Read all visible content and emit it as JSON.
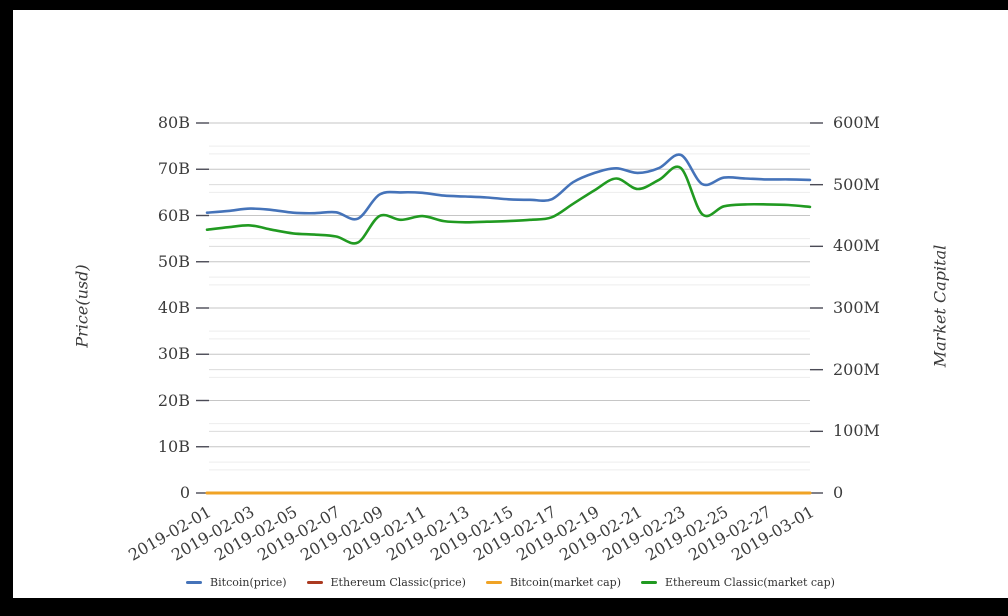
{
  "frame": {
    "background": "#000000",
    "page_background": "#ffffff"
  },
  "chart_data": {
    "type": "line",
    "title": "",
    "x": [
      "2019-02-01",
      "2019-02-02",
      "2019-02-03",
      "2019-02-04",
      "2019-02-05",
      "2019-02-06",
      "2019-02-07",
      "2019-02-08",
      "2019-02-09",
      "2019-02-10",
      "2019-02-11",
      "2019-02-12",
      "2019-02-13",
      "2019-02-14",
      "2019-02-15",
      "2019-02-16",
      "2019-02-17",
      "2019-02-18",
      "2019-02-19",
      "2019-02-20",
      "2019-02-21",
      "2019-02-22",
      "2019-02-23",
      "2019-02-24",
      "2019-02-25",
      "2019-02-26",
      "2019-02-27",
      "2019-02-28",
      "2019-03-01"
    ],
    "x_tick_labels": [
      "2019-02-01",
      "2019-02-03",
      "2019-02-05",
      "2019-02-07",
      "2019-02-09",
      "2019-02-11",
      "2019-02-13",
      "2019-02-15",
      "2019-02-17",
      "2019-02-19",
      "2019-02-21",
      "2019-02-23",
      "2019-02-25",
      "2019-02-27",
      "2019-03-01"
    ],
    "left_axis": {
      "title": "Price(usd)",
      "unit": "B",
      "range": [
        0,
        80
      ],
      "major_step": 10,
      "minor_step": 5,
      "tick_labels": [
        "0",
        "10B",
        "20B",
        "30B",
        "40B",
        "50B",
        "60B",
        "70B",
        "80B"
      ]
    },
    "right_axis": {
      "title": "Market Capital",
      "unit": "M",
      "range": [
        0,
        600
      ],
      "major_step": 100,
      "minor_step": 50,
      "tick_labels": [
        "0",
        "100M",
        "200M",
        "300M",
        "400M",
        "500M",
        "600M"
      ]
    },
    "grid": {
      "left_major_color": "#c6c6c6",
      "right_major_color": "#dcdcdc",
      "minor_color": "#ededed",
      "tick_color": "#4a4a55",
      "grid_on": true
    },
    "text_color": "#3c3c3c",
    "legend_position": "bottom",
    "series": [
      {
        "name": "Bitcoin(price)",
        "axis": "left",
        "color": "#4573b9",
        "width": 2.6,
        "values": [
          60.6,
          61.0,
          61.5,
          61.2,
          60.6,
          60.5,
          60.7,
          59.3,
          64.5,
          65.0,
          64.9,
          64.3,
          64.1,
          63.9,
          63.5,
          63.4,
          63.5,
          67.2,
          69.2,
          70.2,
          69.2,
          70.3,
          73.1,
          66.8,
          68.2,
          68.0,
          67.8,
          67.8,
          67.7
        ]
      },
      {
        "name": "Ethereum Classic(price)",
        "axis": "left",
        "color": "#ab3a20",
        "width": 2.4,
        "values": [
          0,
          0,
          0,
          0,
          0,
          0,
          0,
          0,
          0,
          0,
          0,
          0,
          0,
          0,
          0,
          0,
          0,
          0,
          0,
          0,
          0,
          0,
          0,
          0,
          0,
          0,
          0,
          0,
          0
        ]
      },
      {
        "name": "Bitcoin(market cap)",
        "axis": "right",
        "color": "#f0a325",
        "width": 3,
        "values": [
          0,
          0,
          0,
          0,
          0,
          0,
          0,
          0,
          0,
          0,
          0,
          0,
          0,
          0,
          0,
          0,
          0,
          0,
          0,
          0,
          0,
          0,
          0,
          0,
          0,
          0,
          0,
          0,
          0
        ]
      },
      {
        "name": "Ethereum Classic(market cap)",
        "axis": "right",
        "color": "#219a21",
        "width": 2.6,
        "values": [
          427,
          431,
          434,
          427,
          421,
          419,
          416,
          406,
          449,
          443,
          449,
          441,
          439,
          440,
          441,
          443,
          447,
          469,
          491,
          510,
          493,
          508,
          527,
          452,
          465,
          468,
          468,
          467,
          464
        ]
      }
    ]
  }
}
